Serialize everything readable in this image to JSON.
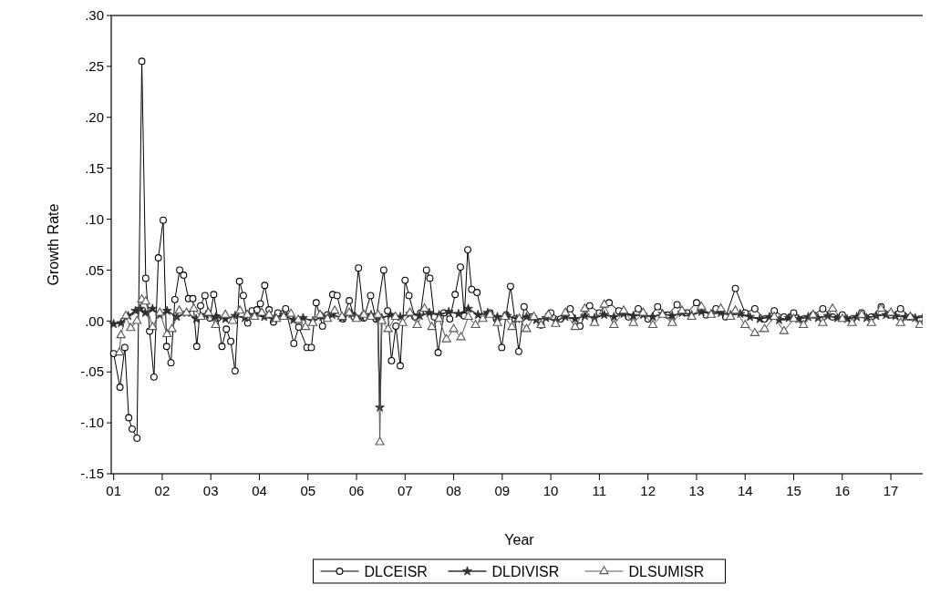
{
  "chart_data": {
    "type": "line",
    "xlabel": "Year",
    "ylabel": "Growth Rate",
    "xlim": [
      2000.95,
      2017.75
    ],
    "ylim": [
      -0.15,
      0.3
    ],
    "xticks": [
      {
        "value": 2001,
        "label": "01"
      },
      {
        "value": 2002,
        "label": "02"
      },
      {
        "value": 2003,
        "label": "03"
      },
      {
        "value": 2004,
        "label": "04"
      },
      {
        "value": 2005,
        "label": "05"
      },
      {
        "value": 2006,
        "label": "06"
      },
      {
        "value": 2007,
        "label": "07"
      },
      {
        "value": 2008,
        "label": "08"
      },
      {
        "value": 2009,
        "label": "09"
      },
      {
        "value": 2010,
        "label": "10"
      },
      {
        "value": 2011,
        "label": "11"
      },
      {
        "value": 2012,
        "label": "12"
      },
      {
        "value": 2013,
        "label": "13"
      },
      {
        "value": 2014,
        "label": "14"
      },
      {
        "value": 2015,
        "label": "15"
      },
      {
        "value": 2016,
        "label": "16"
      },
      {
        "value": 2017,
        "label": "17"
      }
    ],
    "yticks": [
      {
        "value": -0.15,
        "label": "-.15"
      },
      {
        "value": -0.1,
        "label": "-.10"
      },
      {
        "value": -0.05,
        "label": "-.05"
      },
      {
        "value": 0,
        "label": ".00"
      },
      {
        "value": 0.05,
        "label": ".05"
      },
      {
        "value": 0.1,
        "label": ".10"
      },
      {
        "value": 0.15,
        "label": ".15"
      },
      {
        "value": 0.2,
        "label": ".20"
      },
      {
        "value": 0.25,
        "label": ".25"
      },
      {
        "value": 0.3,
        "label": ".30"
      }
    ],
    "grid": false,
    "legend": "bottom",
    "line_style": "solid",
    "series": [
      {
        "name": "DLCEISR",
        "color": "#000000",
        "marker": "circle",
        "x": [
          2001.0,
          2001.13,
          2001.23,
          2001.31,
          2001.38,
          2001.48,
          2001.58,
          2001.66,
          2001.74,
          2001.83,
          2001.92,
          2002.02,
          2002.09,
          2002.18,
          2002.26,
          2002.36,
          2002.44,
          2002.54,
          2002.63,
          2002.71,
          2002.79,
          2002.88,
          2002.98,
          2003.06,
          2003.14,
          2003.23,
          2003.32,
          2003.41,
          2003.5,
          2003.59,
          2003.67,
          2003.76,
          2003.85,
          2003.95,
          2004.02,
          2004.11,
          2004.2,
          2004.29,
          2004.38,
          2004.54,
          2004.71,
          2004.81,
          2004.98,
          2005.07,
          2005.17,
          2005.3,
          2005.4,
          2005.51,
          2005.6,
          2005.72,
          2005.85,
          2005.95,
          2006.04,
          2006.15,
          2006.29,
          2006.4,
          2006.56,
          2006.64,
          2006.72,
          2006.81,
          2006.9,
          2007.0,
          2007.08,
          2007.2,
          2007.32,
          2007.44,
          2007.51,
          2007.6,
          2007.68,
          2007.8,
          2007.92,
          2008.03,
          2008.14,
          2008.22,
          2008.29,
          2008.37,
          2008.48,
          2008.6,
          2008.75,
          2008.88,
          2008.99,
          2009.08,
          2009.17,
          2009.26,
          2009.34,
          2009.45,
          2009.6,
          2009.8,
          2010.0,
          2010.2,
          2010.4,
          2010.6,
          2010.8,
          2011.0,
          2011.2,
          2011.4,
          2011.6,
          2011.8,
          2012.0,
          2012.2,
          2012.4,
          2012.6,
          2012.8,
          2013.0,
          2013.2,
          2013.4,
          2013.6,
          2013.8,
          2014.0,
          2014.2,
          2014.4,
          2014.6,
          2014.8,
          2015.0,
          2015.2,
          2015.4,
          2015.6,
          2015.8,
          2016.0,
          2016.2,
          2016.4,
          2016.6,
          2016.8,
          2017.0,
          2017.2,
          2017.4,
          2017.6,
          2017.72
        ],
        "values": [
          -0.032,
          -0.065,
          -0.026,
          -0.095,
          -0.106,
          -0.115,
          0.255,
          0.042,
          -0.01,
          -0.055,
          0.062,
          0.099,
          -0.025,
          -0.041,
          0.021,
          0.05,
          0.045,
          0.022,
          0.022,
          -0.025,
          0.015,
          0.025,
          0.003,
          0.026,
          0.003,
          -0.025,
          -0.008,
          -0.02,
          -0.049,
          0.039,
          0.025,
          -0.002,
          0.01,
          0.011,
          0.017,
          0.035,
          0.011,
          -0.001,
          0.008,
          0.012,
          -0.022,
          -0.006,
          -0.026,
          -0.026,
          0.018,
          -0.005,
          0.006,
          0.026,
          0.025,
          0.002,
          0.02,
          0.004,
          0.052,
          0.003,
          0.025,
          0.002,
          0.05,
          0.01,
          -0.039,
          -0.005,
          -0.044,
          0.04,
          0.025,
          0.004,
          0.008,
          0.05,
          0.042,
          0.004,
          -0.031,
          0.008,
          0.002,
          0.026,
          0.053,
          0.005,
          0.07,
          0.031,
          0.028,
          0.004,
          0.008,
          0.002,
          -0.026,
          0.006,
          0.034,
          0.002,
          -0.03,
          0.014,
          0.004,
          -0.004,
          0.008,
          0.002,
          0.012,
          -0.005,
          0.015,
          0.008,
          0.018,
          0.01,
          0.004,
          0.012,
          0.002,
          0.014,
          0.006,
          0.016,
          0.008,
          0.018,
          0.006,
          0.012,
          0.004,
          0.032,
          0.008,
          0.012,
          0.002,
          0.01,
          0.004,
          0.008,
          0.002,
          0.006,
          0.012,
          0.004,
          0.006,
          0.002,
          0.008,
          0.004,
          0.014,
          0.006,
          0.012,
          0.004,
          0.002,
          0.006
        ]
      },
      {
        "name": "DLDIVISR",
        "color": "#2e2e2e",
        "marker": "star",
        "x": [
          2001.0,
          2001.15,
          2001.3,
          2001.45,
          2001.55,
          2001.65,
          2001.8,
          2001.95,
          2002.1,
          2002.3,
          2002.5,
          2002.7,
          2002.9,
          2003.1,
          2003.3,
          2003.5,
          2003.7,
          2003.9,
          2004.1,
          2004.3,
          2004.5,
          2004.7,
          2004.9,
          2005.1,
          2005.3,
          2005.5,
          2005.7,
          2005.9,
          2006.1,
          2006.3,
          2006.44,
          2006.48,
          2006.52,
          2006.7,
          2006.9,
          2007.1,
          2007.3,
          2007.5,
          2007.7,
          2007.9,
          2008.1,
          2008.3,
          2008.5,
          2008.7,
          2008.9,
          2009.1,
          2009.3,
          2009.5,
          2009.7,
          2009.9,
          2010.1,
          2010.3,
          2010.5,
          2010.7,
          2010.9,
          2011.1,
          2011.3,
          2011.5,
          2011.7,
          2011.9,
          2012.1,
          2012.3,
          2012.5,
          2012.7,
          2012.9,
          2013.1,
          2013.3,
          2013.5,
          2013.7,
          2013.9,
          2014.1,
          2014.3,
          2014.5,
          2014.7,
          2014.9,
          2015.1,
          2015.3,
          2015.5,
          2015.7,
          2015.9,
          2016.1,
          2016.3,
          2016.5,
          2016.7,
          2016.9,
          2017.1,
          2017.3,
          2017.5,
          2017.72
        ],
        "values": [
          -0.003,
          -0.002,
          0.005,
          0.01,
          0.012,
          0.008,
          0.012,
          0.006,
          0.01,
          0.004,
          0.008,
          0.002,
          0.006,
          0.004,
          0.002,
          0.005,
          0.003,
          0.006,
          0.004,
          0.002,
          0.006,
          0.001,
          0.003,
          0.0,
          0.004,
          0.006,
          0.003,
          0.007,
          0.004,
          0.006,
          0.002,
          -0.085,
          0.003,
          0.006,
          0.004,
          0.007,
          0.005,
          0.008,
          0.006,
          0.009,
          0.007,
          0.012,
          0.006,
          0.008,
          0.004,
          0.005,
          0.002,
          0.004,
          0.001,
          0.003,
          0.0,
          0.004,
          0.002,
          0.005,
          0.003,
          0.006,
          0.004,
          0.007,
          0.005,
          0.006,
          0.004,
          0.007,
          0.005,
          0.008,
          0.006,
          0.009,
          0.007,
          0.008,
          0.006,
          0.007,
          0.004,
          0.002,
          0.004,
          0.001,
          0.003,
          0.002,
          0.004,
          0.003,
          0.005,
          0.003,
          0.002,
          0.004,
          0.003,
          0.005,
          0.006,
          0.005,
          0.004,
          0.003,
          0.004
        ]
      },
      {
        "name": "DLSUMISR",
        "color": "#575757",
        "marker": "triangle",
        "x": [
          2001.12,
          2001.15,
          2001.25,
          2001.35,
          2001.48,
          2001.58,
          2001.66,
          2001.8,
          2001.95,
          2002.1,
          2002.2,
          2002.35,
          2002.5,
          2002.65,
          2002.8,
          2002.95,
          2003.1,
          2003.3,
          2003.45,
          2003.6,
          2003.75,
          2003.9,
          2004.05,
          2004.2,
          2004.35,
          2004.5,
          2004.65,
          2004.8,
          2004.95,
          2005.1,
          2005.25,
          2005.4,
          2005.55,
          2005.7,
          2005.85,
          2006.0,
          2006.15,
          2006.3,
          2006.44,
          2006.48,
          2006.52,
          2006.65,
          2006.8,
          2006.95,
          2007.1,
          2007.25,
          2007.4,
          2007.55,
          2007.7,
          2007.85,
          2008.0,
          2008.15,
          2008.3,
          2008.45,
          2008.6,
          2008.75,
          2008.9,
          2009.05,
          2009.2,
          2009.35,
          2009.5,
          2009.65,
          2009.8,
          2009.95,
          2010.1,
          2010.3,
          2010.5,
          2010.7,
          2010.9,
          2011.1,
          2011.3,
          2011.5,
          2011.7,
          2011.9,
          2012.1,
          2012.3,
          2012.5,
          2012.7,
          2012.9,
          2013.1,
          2013.3,
          2013.5,
          2013.7,
          2013.8,
          2014.0,
          2014.2,
          2014.4,
          2014.6,
          2014.8,
          2015.0,
          2015.2,
          2015.4,
          2015.6,
          2015.8,
          2016.0,
          2016.2,
          2016.4,
          2016.6,
          2016.8,
          2017.0,
          2017.2,
          2017.4,
          2017.6,
          2017.72
        ],
        "values": [
          -0.031,
          -0.014,
          0.005,
          -0.007,
          0.0,
          0.021,
          0.019,
          -0.006,
          0.008,
          -0.013,
          -0.008,
          0.01,
          0.008,
          0.012,
          0.004,
          0.008,
          -0.004,
          0.006,
          0.0,
          0.01,
          0.006,
          0.004,
          0.008,
          0.006,
          0.002,
          0.004,
          0.007,
          0.001,
          -0.006,
          -0.002,
          0.006,
          0.002,
          0.01,
          0.004,
          0.008,
          0.002,
          0.006,
          0.004,
          0.006,
          -0.119,
          0.0,
          -0.008,
          0.004,
          -0.002,
          0.008,
          -0.004,
          0.012,
          -0.006,
          0.002,
          -0.018,
          -0.008,
          -0.016,
          0.004,
          -0.004,
          0.002,
          0.006,
          -0.002,
          0.004,
          -0.006,
          0.002,
          -0.008,
          0.004,
          -0.004,
          0.006,
          -0.003,
          0.008,
          -0.006,
          0.012,
          -0.002,
          0.016,
          -0.004,
          0.01,
          -0.002,
          0.008,
          -0.004,
          0.006,
          -0.002,
          0.01,
          0.004,
          0.014,
          0.006,
          0.012,
          0.004,
          0.01,
          -0.004,
          -0.012,
          -0.008,
          0.004,
          -0.01,
          0.002,
          -0.004,
          0.006,
          -0.002,
          0.012,
          0.002,
          -0.002,
          0.006,
          -0.002,
          0.012,
          0.008,
          -0.002,
          0.004,
          -0.004,
          0.002
        ]
      }
    ]
  }
}
